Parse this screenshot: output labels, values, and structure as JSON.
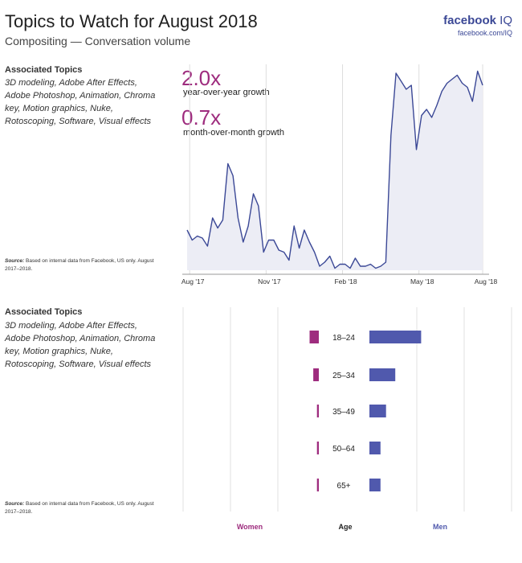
{
  "header": {
    "title": "Topics to Watch for August 2018",
    "subtitle": "Compositing — Conversation volume",
    "brand": "facebook",
    "brand_suffix": "IQ",
    "brand_url": "facebook.com/IQ"
  },
  "topics_top": {
    "heading": "Associated Topics",
    "body": "3D modeling, Adobe After Effects, Adobe Photoshop, Animation, Chroma key, Motion graphics, Nuke, Rotoscoping, Software, Visual effects",
    "source_label": "Source:",
    "source_text": "Based on internal data from Facebook, US only. August 2017–2018."
  },
  "topics_bottom": {
    "heading": "Associated Topics",
    "body": "3D modeling, Adobe After Effects, Adobe Photoshop, Animation, Chroma key, Motion graphics, Nuke, Rotoscoping, Software, Visual effects",
    "source_label": "Source:",
    "source_text": "Based on internal data from Facebook, US only. August 2017–2018."
  },
  "stats": {
    "yoy_value": "2.0x",
    "yoy_label": "year-over-year growth",
    "mom_value": "0.7x",
    "mom_label": "month-over-month growth"
  },
  "colors": {
    "line": "#3b4896",
    "area": "#ecedf5",
    "women": "#9e2c7e",
    "men": "#5059ad",
    "grid": "#dddddd"
  },
  "chart_data": [
    {
      "type": "area",
      "title": "",
      "x_ticks": [
        "Aug '17",
        "Nov '17",
        "Feb '18",
        "May '18",
        "Aug '18"
      ],
      "y_unit": "relative conversation volume",
      "ylim": [
        0,
        100
      ],
      "grid": "vertical lines at tick positions",
      "series": [
        {
          "values": [
            20,
            15,
            17,
            16,
            12,
            26,
            21,
            25,
            53,
            47,
            26,
            14,
            22,
            38,
            32,
            9,
            15,
            15,
            10,
            9,
            5,
            22,
            11,
            20,
            14,
            9,
            2,
            4,
            7,
            1,
            3,
            3,
            1,
            6,
            2,
            2,
            3,
            1,
            2,
            4,
            67,
            98,
            94,
            90,
            92,
            60,
            77,
            80,
            76,
            82,
            89,
            93,
            95,
            97,
            93,
            91,
            84,
            99,
            92
          ]
        }
      ]
    },
    {
      "type": "bar",
      "orientation": "horizontal diverging",
      "categories": [
        "18–24",
        "25–34",
        "35–49",
        "50–64",
        "65+"
      ],
      "xlabel_left": "Women",
      "xlabel_center": "Age",
      "xlabel_right": "Men",
      "series": [
        {
          "name": "Women",
          "values": [
            5,
            3,
            1,
            1,
            1
          ]
        },
        {
          "name": "Men",
          "values": [
            28,
            14,
            9,
            6,
            6
          ]
        }
      ]
    }
  ]
}
